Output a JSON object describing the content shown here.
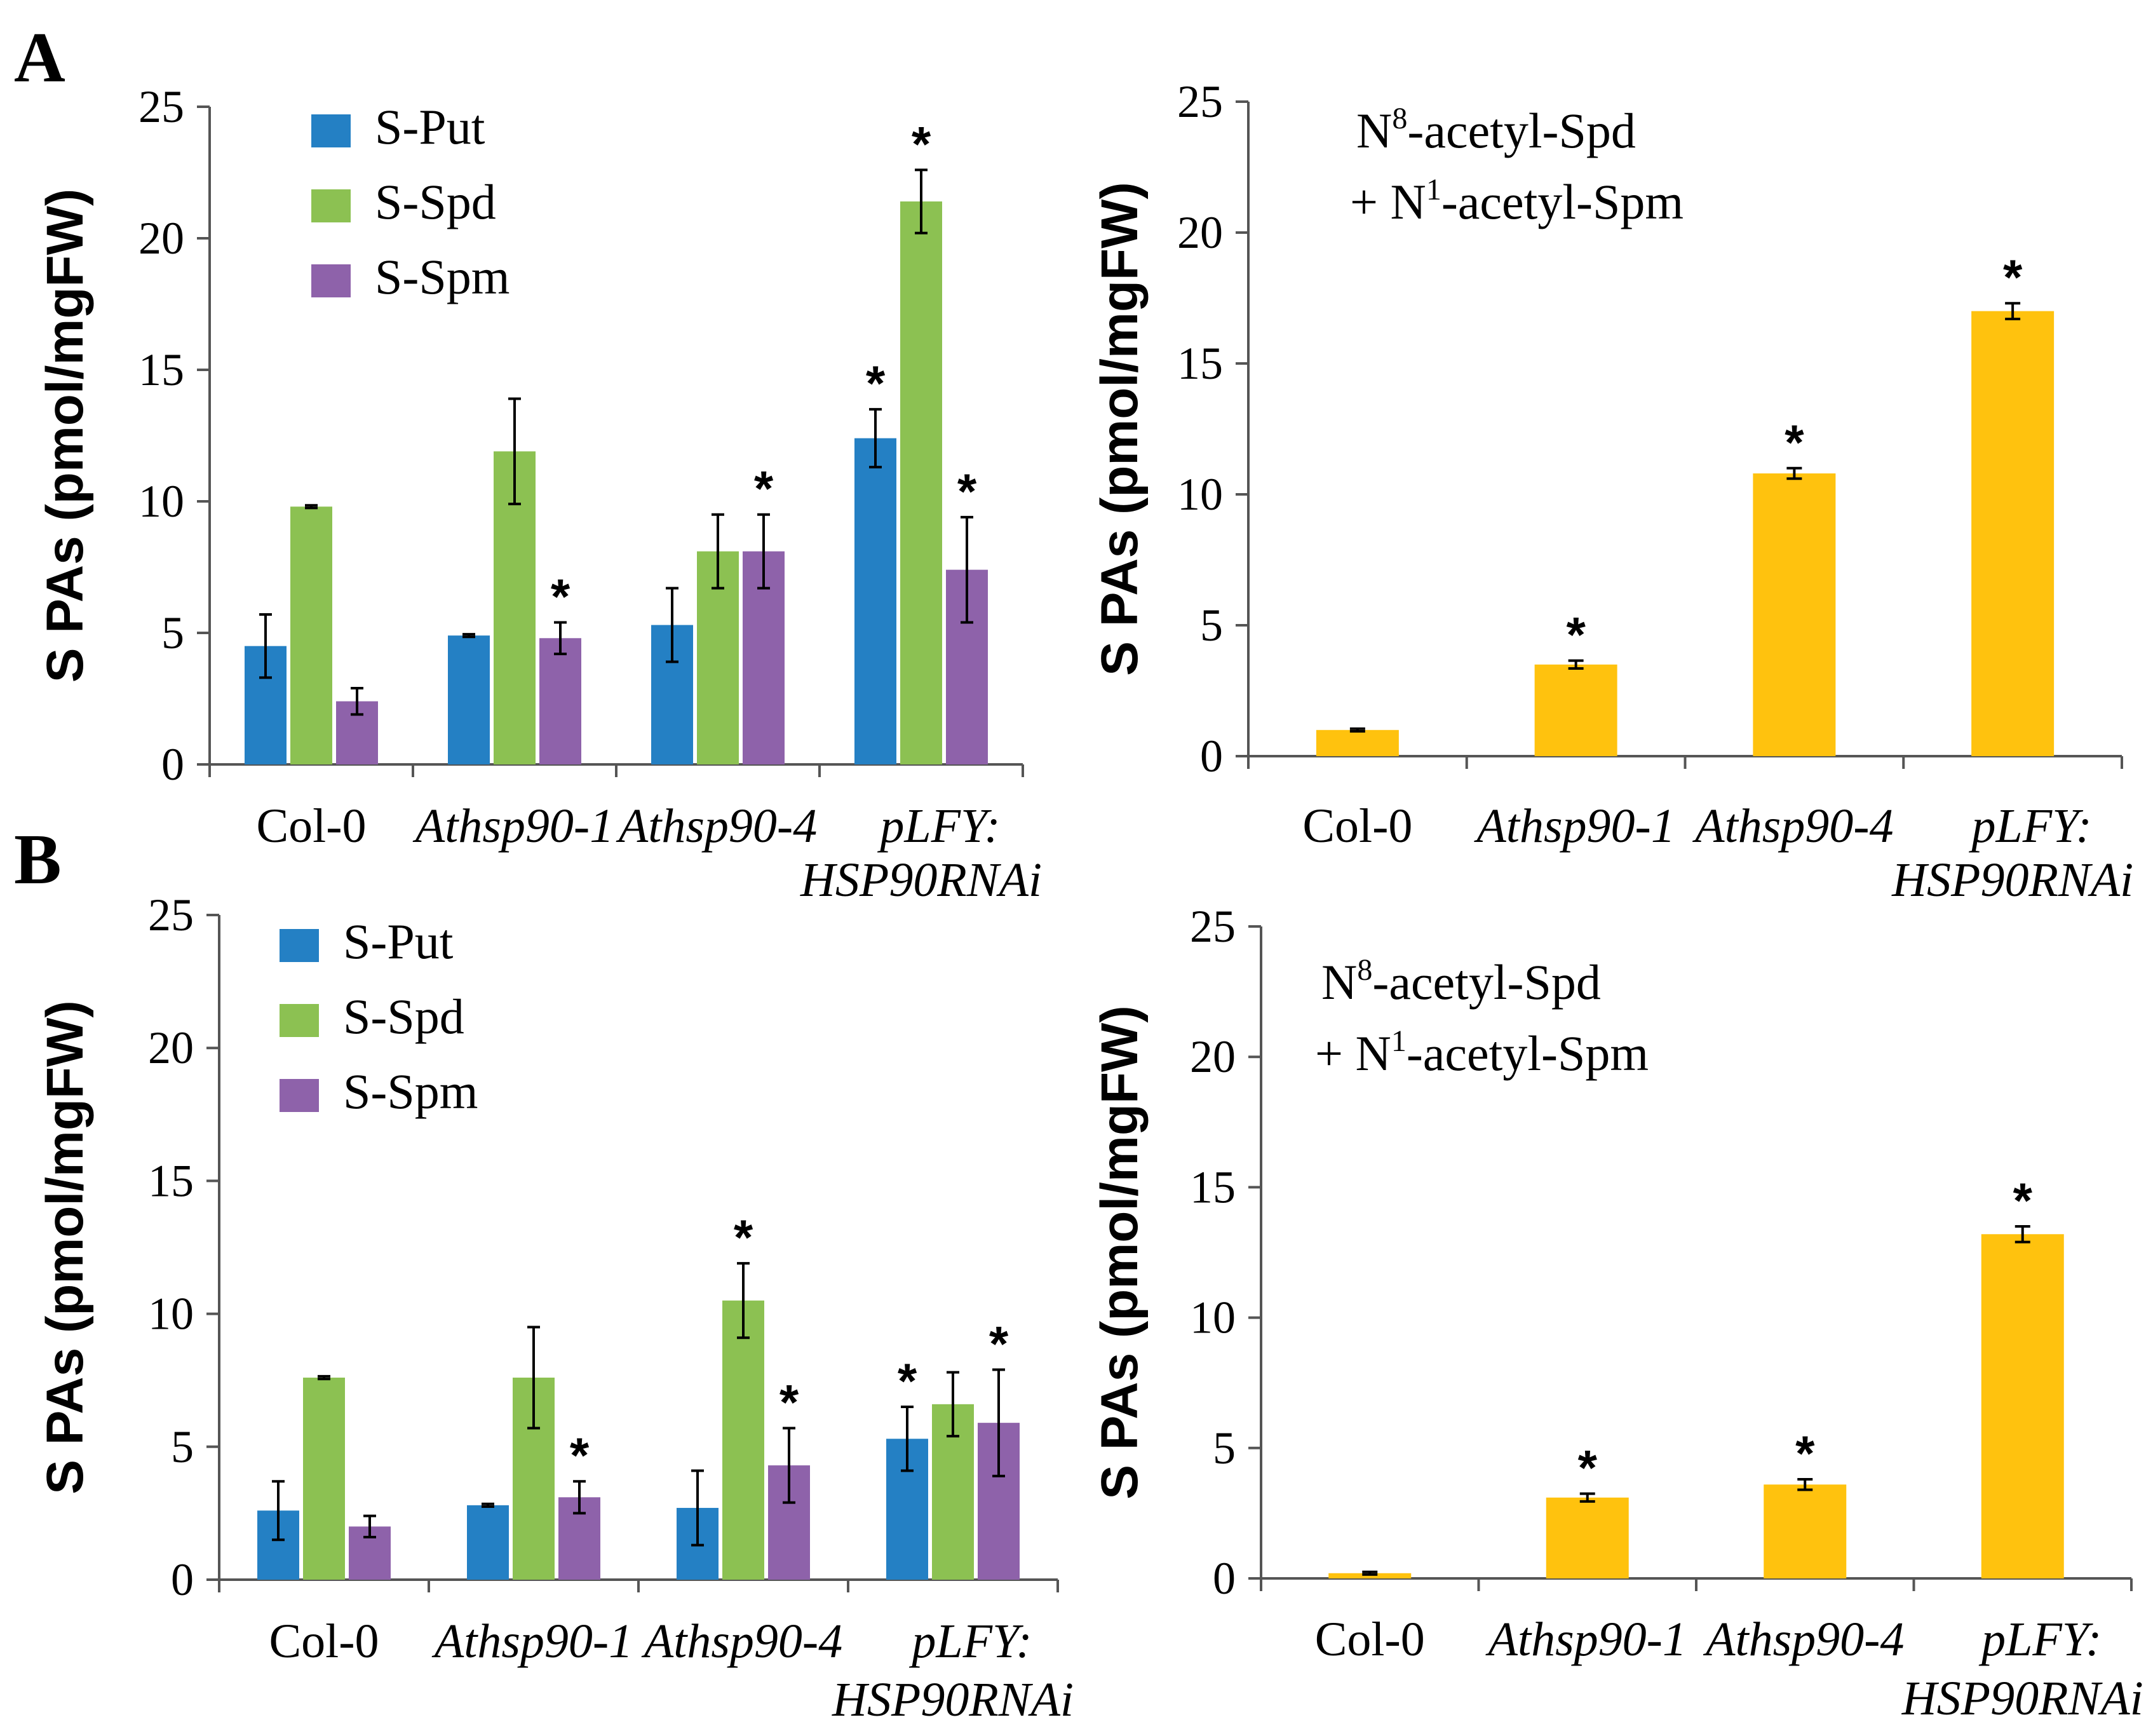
{
  "panel_letters": [
    "A",
    "B"
  ],
  "chart_data": [
    {
      "id": "A_left",
      "type": "bar",
      "ylabel": "S PAs (pmol/mgFW)",
      "ylim": [
        0,
        25
      ],
      "yticks": [
        0,
        5,
        10,
        15,
        20,
        25
      ],
      "categories": [
        {
          "lines": [
            "Col-0"
          ],
          "italic": false
        },
        {
          "lines": [
            "Athsp90-1"
          ],
          "italic": true
        },
        {
          "lines": [
            "Athsp90-4"
          ],
          "italic": true
        },
        {
          "lines": [
            "pLFY:",
            "HSP90RNAi"
          ],
          "italic": true
        }
      ],
      "legend": {
        "position": "top-left"
      },
      "series": [
        {
          "name": "S-Put",
          "color": "#2480c4",
          "values": [
            4.5,
            4.9,
            5.3,
            12.4
          ],
          "errors": [
            1.2,
            0.05,
            1.4,
            1.1
          ],
          "sig": [
            false,
            false,
            false,
            true
          ]
        },
        {
          "name": "S-Spd",
          "color": "#8cc152",
          "values": [
            9.8,
            11.9,
            8.1,
            21.4
          ],
          "errors": [
            0.05,
            2.0,
            1.4,
            1.2
          ],
          "sig": [
            false,
            false,
            false,
            true
          ]
        },
        {
          "name": "S-Spm",
          "color": "#8e62aa",
          "values": [
            2.4,
            4.8,
            8.1,
            7.4
          ],
          "errors": [
            0.5,
            0.6,
            1.4,
            2.0
          ],
          "sig": [
            false,
            true,
            true,
            true
          ]
        }
      ],
      "sig_symbol": "*"
    },
    {
      "id": "A_right",
      "type": "bar",
      "ylabel": "S PAs (pmol/mgFW)",
      "ylim": [
        0,
        25
      ],
      "yticks": [
        0,
        5,
        10,
        15,
        20,
        25
      ],
      "annotation": {
        "line1_pre": "N",
        "line1_sup": "8",
        "line1_post": "-acetyl-Spd",
        "line2_pre": "+ N",
        "line2_sup": "1",
        "line2_post": "-acetyl-Spm"
      },
      "categories": [
        {
          "lines": [
            "Col-0"
          ],
          "italic": false
        },
        {
          "lines": [
            "Athsp90-1"
          ],
          "italic": true
        },
        {
          "lines": [
            "Athsp90-4"
          ],
          "italic": true
        },
        {
          "lines": [
            "pLFY:",
            "HSP90RNAi"
          ],
          "italic": true
        }
      ],
      "series": [
        {
          "name": "acetyl",
          "color": "#ffc20e",
          "values": [
            1.0,
            3.5,
            10.8,
            17.0
          ],
          "errors": [
            0.05,
            0.15,
            0.2,
            0.3
          ],
          "sig": [
            false,
            true,
            true,
            true
          ]
        }
      ],
      "sig_symbol": "*"
    },
    {
      "id": "B_left",
      "type": "bar",
      "ylabel": "S PAs (pmol/mgFW)",
      "ylim": [
        0,
        25
      ],
      "yticks": [
        0,
        5,
        10,
        15,
        20,
        25
      ],
      "categories": [
        {
          "lines": [
            "Col-0"
          ],
          "italic": false
        },
        {
          "lines": [
            "Athsp90-1"
          ],
          "italic": true
        },
        {
          "lines": [
            "Athsp90-4"
          ],
          "italic": true
        },
        {
          "lines": [
            "pLFY:",
            "HSP90RNAi"
          ],
          "italic": true
        }
      ],
      "legend": {
        "position": "top-left"
      },
      "series": [
        {
          "name": "S-Put",
          "color": "#2480c4",
          "values": [
            2.6,
            2.8,
            2.7,
            5.3
          ],
          "errors": [
            1.1,
            0.05,
            1.4,
            1.2
          ],
          "sig": [
            false,
            false,
            false,
            true
          ]
        },
        {
          "name": "S-Spd",
          "color": "#8cc152",
          "values": [
            7.6,
            7.6,
            10.5,
            6.6
          ],
          "errors": [
            0.05,
            1.9,
            1.4,
            1.2
          ],
          "sig": [
            false,
            false,
            true,
            false
          ]
        },
        {
          "name": "S-Spm",
          "color": "#8e62aa",
          "values": [
            2.0,
            3.1,
            4.3,
            5.9
          ],
          "errors": [
            0.4,
            0.6,
            1.4,
            2.0
          ],
          "sig": [
            false,
            true,
            true,
            true
          ]
        }
      ],
      "sig_symbol": "*"
    },
    {
      "id": "B_right",
      "type": "bar",
      "ylabel": "S PAs (pmol/mgFW)",
      "ylim": [
        0,
        25
      ],
      "yticks": [
        0,
        5,
        10,
        15,
        20,
        25
      ],
      "annotation": {
        "line1_pre": "N",
        "line1_sup": "8",
        "line1_post": "-acetyl-Spd",
        "line2_pre": "+ N",
        "line2_sup": "1",
        "line2_post": "-acetyl-Spm"
      },
      "categories": [
        {
          "lines": [
            "Col-0"
          ],
          "italic": false
        },
        {
          "lines": [
            "Athsp90-1"
          ],
          "italic": true
        },
        {
          "lines": [
            "Athsp90-4"
          ],
          "italic": true
        },
        {
          "lines": [
            "pLFY:",
            "HSP90RNAi"
          ],
          "italic": true
        }
      ],
      "series": [
        {
          "name": "acetyl",
          "color": "#ffc20e",
          "values": [
            0.2,
            3.1,
            3.6,
            13.2
          ],
          "errors": [
            0.05,
            0.15,
            0.2,
            0.3
          ],
          "sig": [
            false,
            true,
            true,
            true
          ]
        }
      ],
      "sig_symbol": "*"
    }
  ]
}
